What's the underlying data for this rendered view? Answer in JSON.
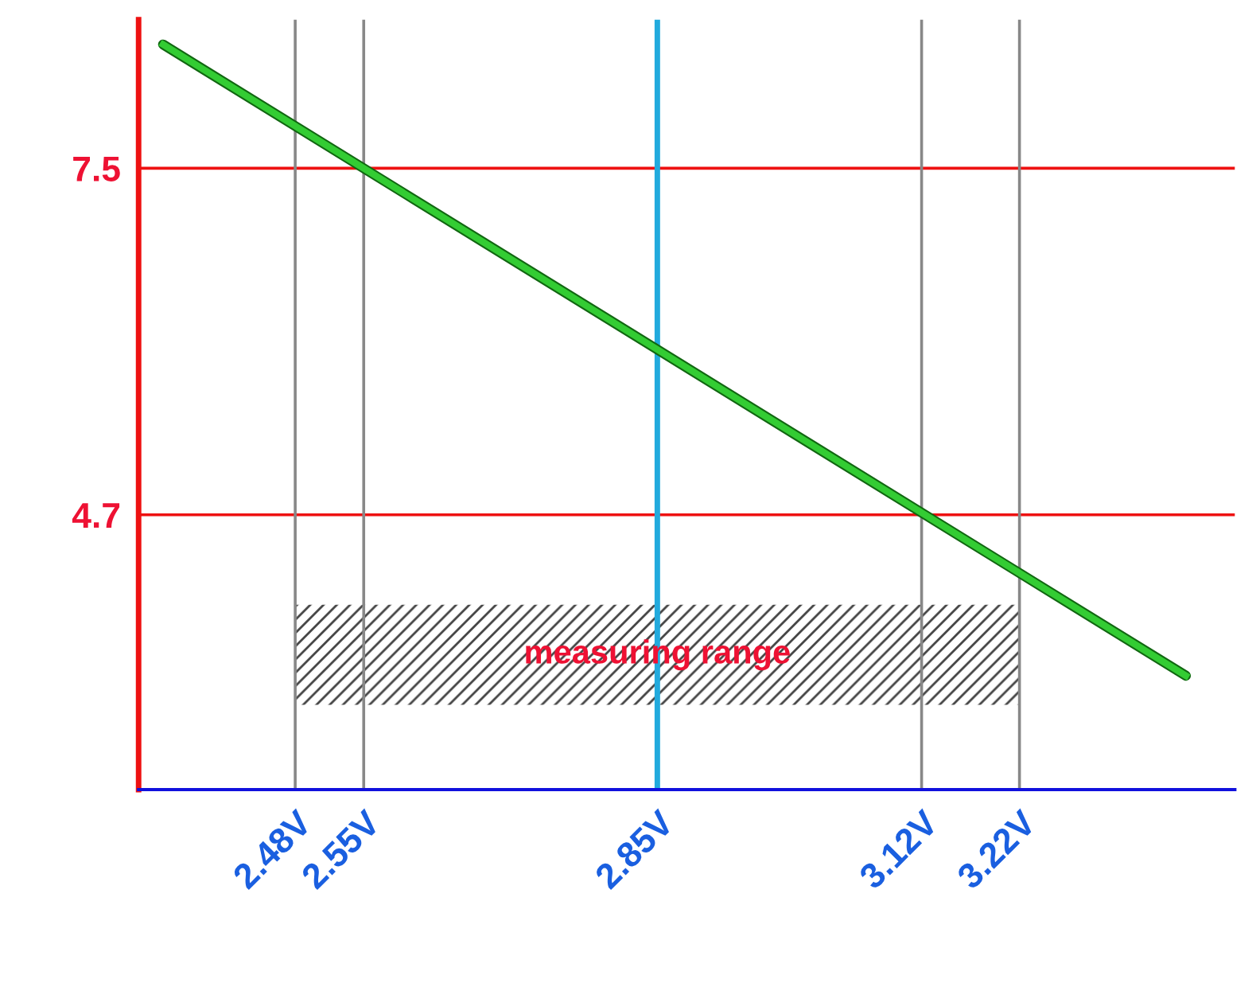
{
  "chart_data": {
    "type": "line",
    "x": [
      2.345,
      3.39
    ],
    "series": [
      {
        "color": "#33cc33",
        "values": [
          8.5,
          3.4
        ]
      }
    ],
    "xlim": [
      2.32,
      3.44
    ],
    "ylim": [
      2.48,
      8.7
    ],
    "xticks": [
      {
        "value": 2.48,
        "label": "2.48V"
      },
      {
        "value": 2.55,
        "label": "2.55V"
      },
      {
        "value": 2.85,
        "label": "2.85V"
      },
      {
        "value": 3.12,
        "label": "3.12V"
      },
      {
        "value": 3.22,
        "label": "3.22V"
      }
    ],
    "yticks": [
      7.5,
      4.7
    ],
    "ref_lines": [
      {
        "axis": "y",
        "value": 7.5,
        "color": "#ee1111"
      },
      {
        "axis": "y",
        "value": 4.7,
        "color": "#ee1111"
      },
      {
        "axis": "x",
        "value": 2.48,
        "color": "#888888"
      },
      {
        "axis": "x",
        "value": 2.55,
        "color": "#888888"
      },
      {
        "axis": "x",
        "value": 2.85,
        "color": "#22aadd"
      },
      {
        "axis": "x",
        "value": 3.12,
        "color": "#888888"
      },
      {
        "axis": "x",
        "value": 3.22,
        "color": "#888888"
      }
    ],
    "bands": [
      {
        "axis": "x",
        "from": 2.48,
        "to": 3.22,
        "label": "measuring range"
      }
    ],
    "grid": false,
    "legend": false
  }
}
